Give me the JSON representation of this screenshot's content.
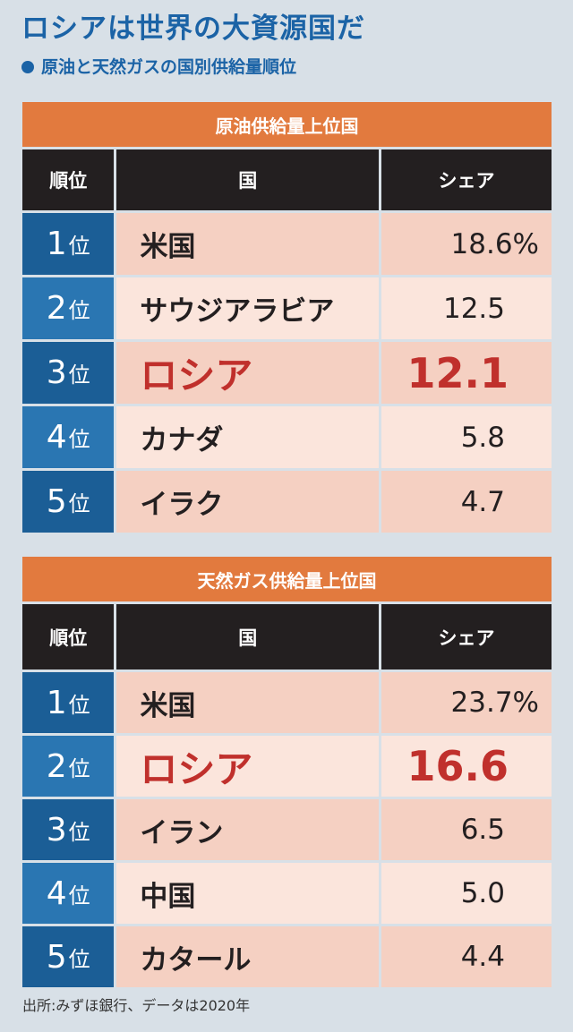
{
  "header": {
    "title": "ロシアは世界の大資源国だ",
    "subtitle": "原油と天然ガスの国別供給量順位"
  },
  "tables": [
    {
      "title": "原油供給量上位国",
      "columns": [
        "順位",
        "国",
        "シェア"
      ],
      "rows": [
        {
          "rank": "1",
          "suffix": "位",
          "country": "米国",
          "share": "18.6%"
        },
        {
          "rank": "2",
          "suffix": "位",
          "country": "サウジアラビア",
          "share": "12.5"
        },
        {
          "rank": "3",
          "suffix": "位",
          "country": "ロシア",
          "share": "12.1",
          "highlight": true
        },
        {
          "rank": "4",
          "suffix": "位",
          "country": "カナダ",
          "share": "5.8"
        },
        {
          "rank": "5",
          "suffix": "位",
          "country": "イラク",
          "share": "4.7"
        }
      ]
    },
    {
      "title": "天然ガス供給量上位国",
      "columns": [
        "順位",
        "国",
        "シェア"
      ],
      "rows": [
        {
          "rank": "1",
          "suffix": "位",
          "country": "米国",
          "share": "23.7%"
        },
        {
          "rank": "2",
          "suffix": "位",
          "country": "ロシア",
          "share": "16.6",
          "highlight": true
        },
        {
          "rank": "3",
          "suffix": "位",
          "country": "イラン",
          "share": "6.5"
        },
        {
          "rank": "4",
          "suffix": "位",
          "country": "中国",
          "share": "5.0"
        },
        {
          "rank": "5",
          "suffix": "位",
          "country": "カタール",
          "share": "4.4"
        }
      ]
    }
  ],
  "footnote": "出所:みずほ銀行、データは2020年"
}
